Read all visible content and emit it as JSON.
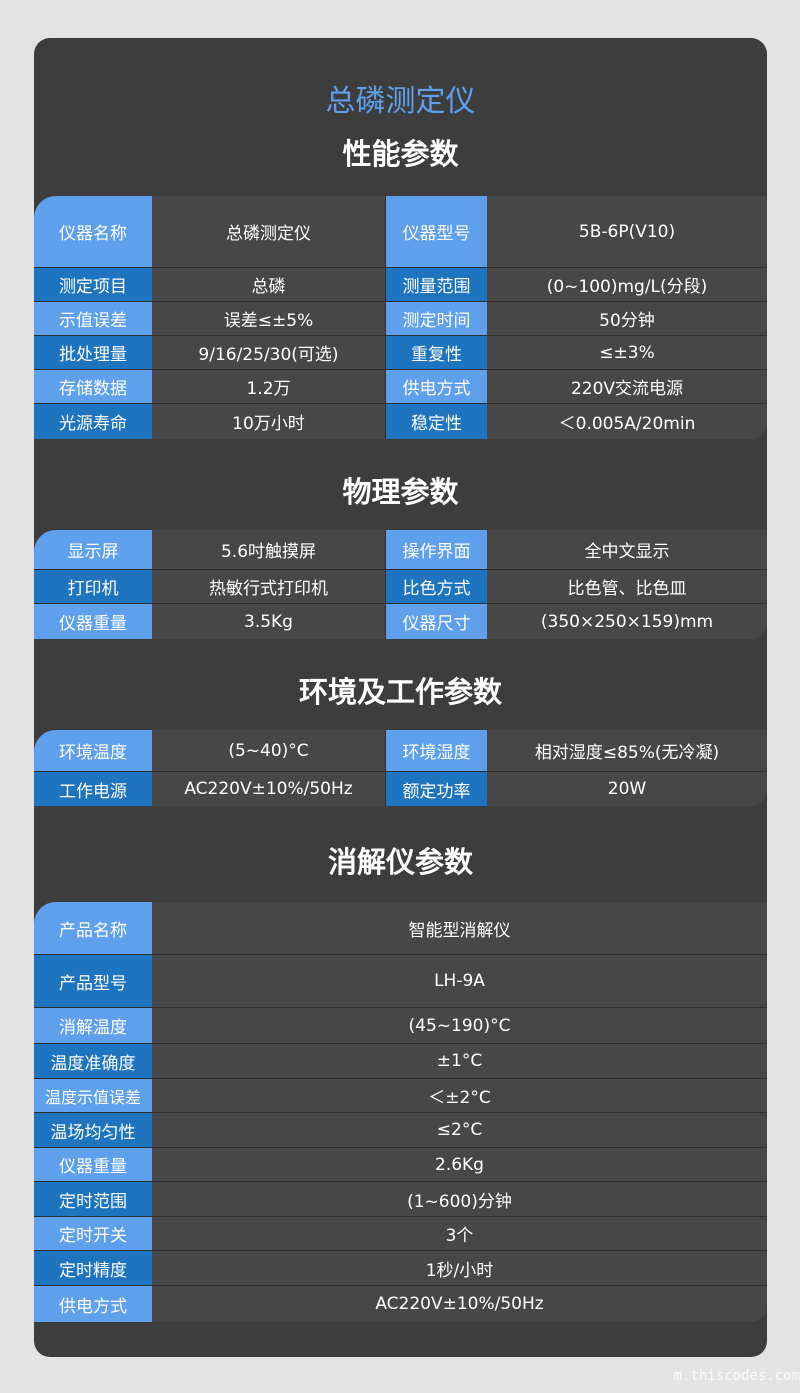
{
  "colors": {
    "accent": "#5fa0ec",
    "label_light": "#5fa0ec",
    "label_dark": "#1f74c0",
    "card": "#3d3d3d",
    "cell": "#474747"
  },
  "title": "总磷测定仪",
  "sections": [
    {
      "heading": "性能参数",
      "rows": [
        [
          "仪器名称",
          "总磷测定仪",
          "仪器型号",
          "5B-6P(V10)"
        ],
        [
          "测定项目",
          "总磷",
          "测量范围",
          "(0~100)mg/L(分段)"
        ],
        [
          "示值误差",
          "误差≤±5%",
          "测定时间",
          "50分钟"
        ],
        [
          "批处理量",
          "9/16/25/30(可选)",
          "重复性",
          "≤±3%"
        ],
        [
          "存储数据",
          "1.2万",
          "供电方式",
          "220V交流电源"
        ],
        [
          "光源寿命",
          "10万小时",
          "稳定性",
          "＜0.005A/20min"
        ]
      ]
    },
    {
      "heading": "物理参数",
      "rows": [
        [
          "显示屏",
          "5.6吋触摸屏",
          "操作界面",
          "全中文显示"
        ],
        [
          "打印机",
          "热敏行式打印机",
          "比色方式",
          "比色管、比色皿"
        ],
        [
          "仪器重量",
          "3.5Kg",
          "仪器尺寸",
          "(350×250×159)mm"
        ]
      ]
    },
    {
      "heading": "环境及工作参数",
      "rows": [
        [
          "环境温度",
          "(5~40)°C",
          "环境湿度",
          "相对湿度≤85%(无冷凝)"
        ],
        [
          "工作电源",
          "AC220V±10%/50Hz",
          "额定功率",
          "20W"
        ]
      ]
    },
    {
      "heading": "消解仪参数",
      "rows": [
        [
          "产品名称",
          "智能型消解仪"
        ],
        [
          "产品型号",
          "LH-9A"
        ],
        [
          "消解温度",
          "(45~190)°C"
        ],
        [
          "温度准确度",
          "±1°C"
        ],
        [
          "温度示值误差",
          "＜±2°C"
        ],
        [
          "温场均匀性",
          "≤2°C"
        ],
        [
          "仪器重量",
          "2.6Kg"
        ],
        [
          "定时范围",
          "(1~600)分钟"
        ],
        [
          "定时开关",
          "3个"
        ],
        [
          "定时精度",
          "1秒/小时"
        ],
        [
          "供电方式",
          "AC220V±10%/50Hz"
        ]
      ]
    }
  ],
  "watermark": "m.thiscodes.com"
}
